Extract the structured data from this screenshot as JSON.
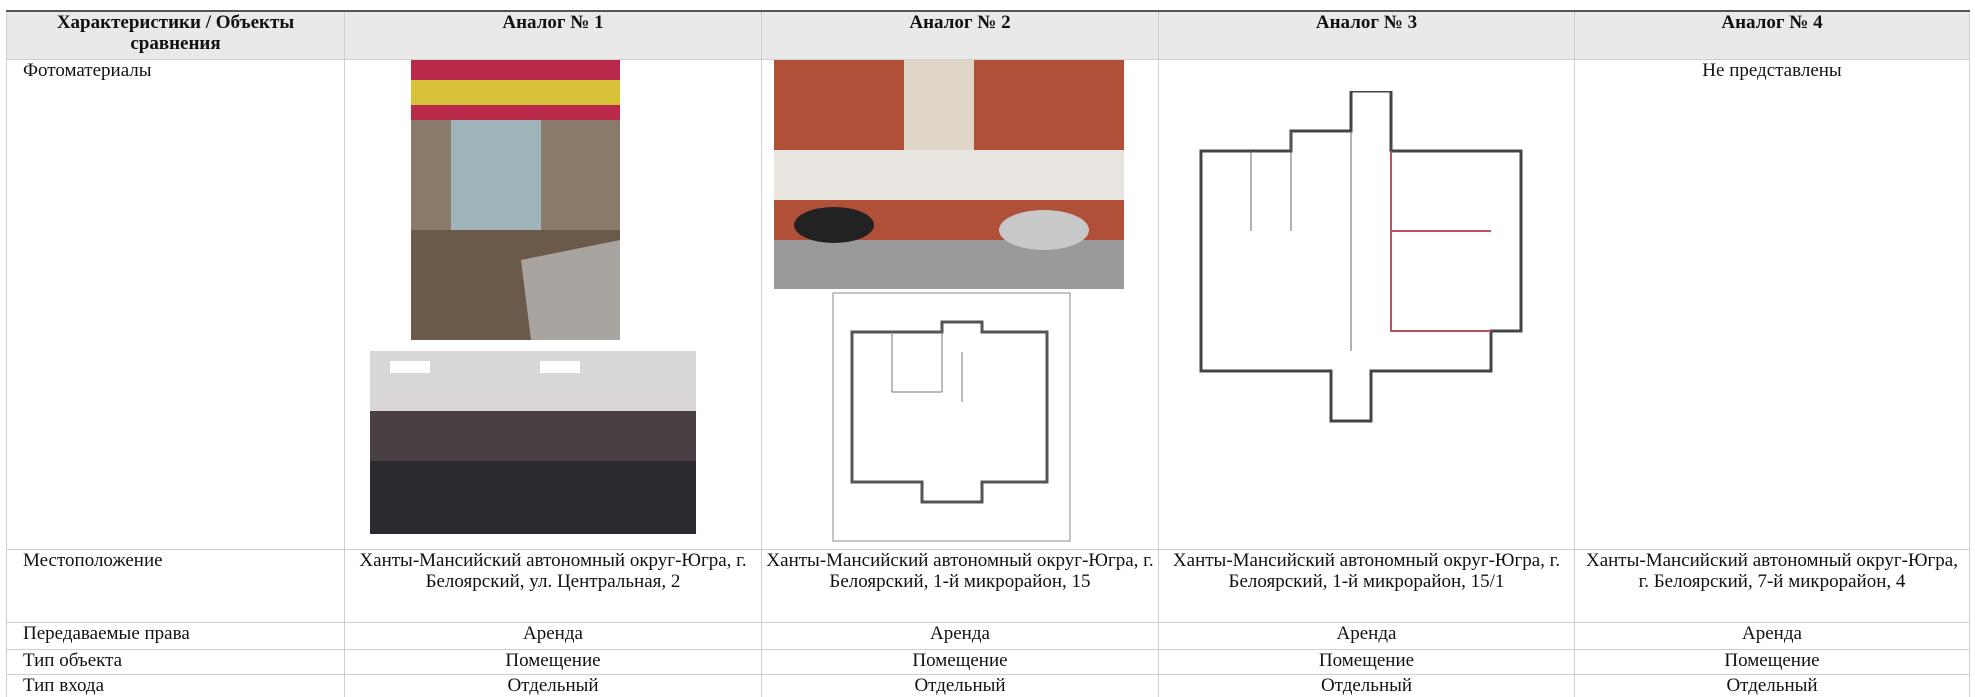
{
  "table": {
    "header": [
      "Характеристики / Объекты сравнения",
      "Аналог № 1",
      "Аналог № 2",
      "Аналог № 3",
      "Аналог № 4"
    ],
    "photo_row": {
      "label": "Фотоматериалы",
      "analog4": "Не представлены"
    },
    "rows": [
      {
        "label": "Местоположение",
        "values": [
          "Ханты-Мансийский автономный округ-Югра, г. Белоярский, ул. Центральная, 2",
          "Ханты-Мансийский автономный округ-Югра, г. Белоярский, 1-й микрорайон, 15",
          "Ханты-Мансийский автономный округ-Югра, г. Белоярский, 1-й микрорайон, 15/1",
          "Ханты-Мансийский автономный округ-Югра, г. Белоярский, 7-й микрорайон, 4"
        ]
      },
      {
        "label": "Передаваемые права",
        "values": [
          "Аренда",
          "Аренда",
          "Аренда",
          "Аренда"
        ]
      },
      {
        "label": "Тип объекта",
        "values": [
          "Помещение",
          "Помещение",
          "Помещение",
          "Помещение"
        ]
      },
      {
        "label": "Тип входа",
        "values": [
          "Отдельный",
          "Отдельный",
          "Отдельный",
          "Отдельный"
        ]
      }
    ]
  }
}
